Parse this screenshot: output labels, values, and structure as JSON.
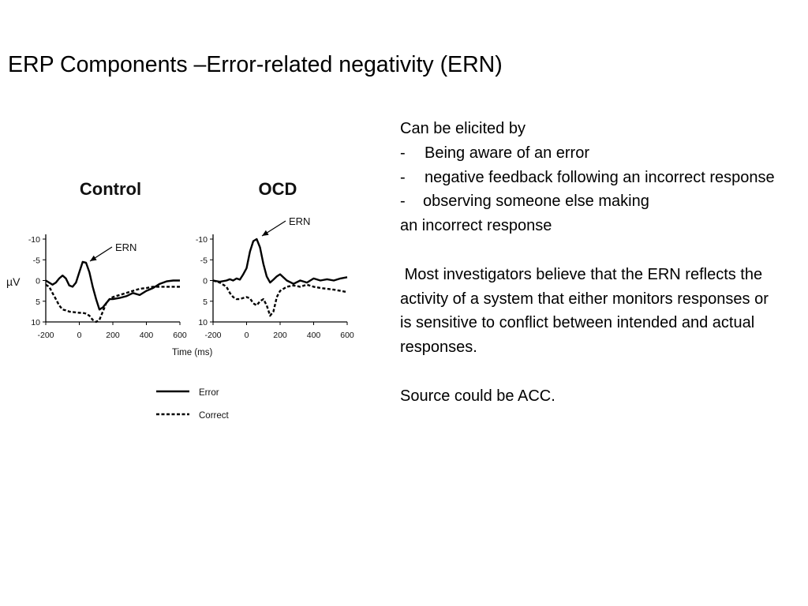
{
  "slide": {
    "title": "ERP Components –Error-related negativity (ERN)"
  },
  "text": {
    "intro": "Can be elicited by",
    "bullets": [
      "Being aware of an error",
      "negative feedback following an incorrect response",
      "observing someone else making"
    ],
    "bullet_dash": "-",
    "bullet3_continuation": "an incorrect response",
    "paragraph": " Most investigators believe that the ERN reflects the activity of a system that either monitors responses or is sensitive to conflict between intended and actual responses.",
    "source": "Source could be ACC."
  },
  "chart_data": [
    {
      "type": "line",
      "title": "Control",
      "annotation": "ERN",
      "xlabel": "Time (ms)",
      "ylabel": "µV",
      "xlim": [
        -200,
        600
      ],
      "ylim": [
        -10,
        10
      ],
      "y_inverted": true,
      "xticks": [
        "-200",
        "0",
        "200",
        "400",
        "600"
      ],
      "yticks": [
        "-10",
        "-5",
        "0",
        "5",
        "10"
      ],
      "series": [
        {
          "name": "Error",
          "style": "solid",
          "x": [
            -200,
            -180,
            -160,
            -140,
            -120,
            -100,
            -80,
            -60,
            -40,
            -20,
            0,
            20,
            40,
            60,
            80,
            100,
            120,
            140,
            160,
            180,
            200,
            240,
            280,
            320,
            360,
            400,
            440,
            480,
            520,
            560,
            600
          ],
          "y": [
            0,
            0.5,
            1,
            0.5,
            -0.5,
            -1.2,
            -0.5,
            1.2,
            1.5,
            0.5,
            -2,
            -4.5,
            -4.3,
            -2,
            1.5,
            4.5,
            7,
            6.5,
            5.5,
            4.5,
            4.5,
            4.2,
            3.8,
            3,
            3.5,
            2.5,
            1.8,
            0.8,
            0.2,
            0,
            0
          ]
        },
        {
          "name": "Correct",
          "style": "dashed",
          "x": [
            -200,
            -180,
            -160,
            -140,
            -120,
            -100,
            -80,
            -60,
            -40,
            -20,
            0,
            20,
            40,
            60,
            80,
            100,
            120,
            140,
            160,
            180,
            200,
            240,
            280,
            320,
            360,
            400,
            440,
            480,
            520,
            560,
            600
          ],
          "y": [
            1,
            1.5,
            3,
            4.5,
            6,
            7,
            7.2,
            7.5,
            7.6,
            7.7,
            7.8,
            7.8,
            8,
            8.5,
            9.5,
            10,
            9.5,
            7.5,
            5.5,
            4.5,
            4,
            3.5,
            3,
            2.5,
            2,
            1.8,
            1.5,
            1.5,
            1.5,
            1.5,
            1.5
          ]
        }
      ]
    },
    {
      "type": "line",
      "title": "OCD",
      "annotation": "ERN",
      "xlim": [
        -200,
        600
      ],
      "ylim": [
        -10,
        10
      ],
      "y_inverted": true,
      "xticks": [
        "-200",
        "0",
        "200",
        "400",
        "600"
      ],
      "yticks": [
        "-10",
        "-5",
        "0",
        "5",
        "10"
      ],
      "series": [
        {
          "name": "Error",
          "style": "solid",
          "x": [
            -200,
            -160,
            -120,
            -100,
            -80,
            -60,
            -40,
            -20,
            0,
            20,
            40,
            60,
            80,
            100,
            120,
            140,
            160,
            180,
            200,
            240,
            280,
            320,
            360,
            400,
            440,
            480,
            520,
            560,
            600
          ],
          "y": [
            0,
            0.3,
            0,
            -0.3,
            0,
            -0.5,
            -0.2,
            -1.5,
            -3,
            -7,
            -9.5,
            -10,
            -8,
            -4,
            -1,
            0.5,
            -0.2,
            -1,
            -1.5,
            0,
            0.8,
            0,
            0.5,
            -0.5,
            0,
            -0.3,
            0,
            -0.5,
            -0.8
          ]
        },
        {
          "name": "Correct",
          "style": "dashed",
          "x": [
            -200,
            -160,
            -120,
            -100,
            -80,
            -60,
            -40,
            -20,
            0,
            20,
            40,
            60,
            80,
            100,
            120,
            140,
            160,
            180,
            200,
            240,
            280,
            320,
            360,
            400,
            440,
            480,
            520,
            560,
            600
          ],
          "y": [
            0,
            0.5,
            1.5,
            3,
            4,
            4.5,
            4.5,
            4.2,
            4,
            4.3,
            5.5,
            6,
            5,
            4.5,
            6,
            8.5,
            7.5,
            4,
            2.5,
            1.5,
            1.2,
            1.5,
            1,
            1.5,
            1.8,
            2,
            2.2,
            2.5,
            2.8
          ]
        }
      ]
    }
  ],
  "legend": {
    "error_label": "Error",
    "correct_label": "Correct"
  }
}
